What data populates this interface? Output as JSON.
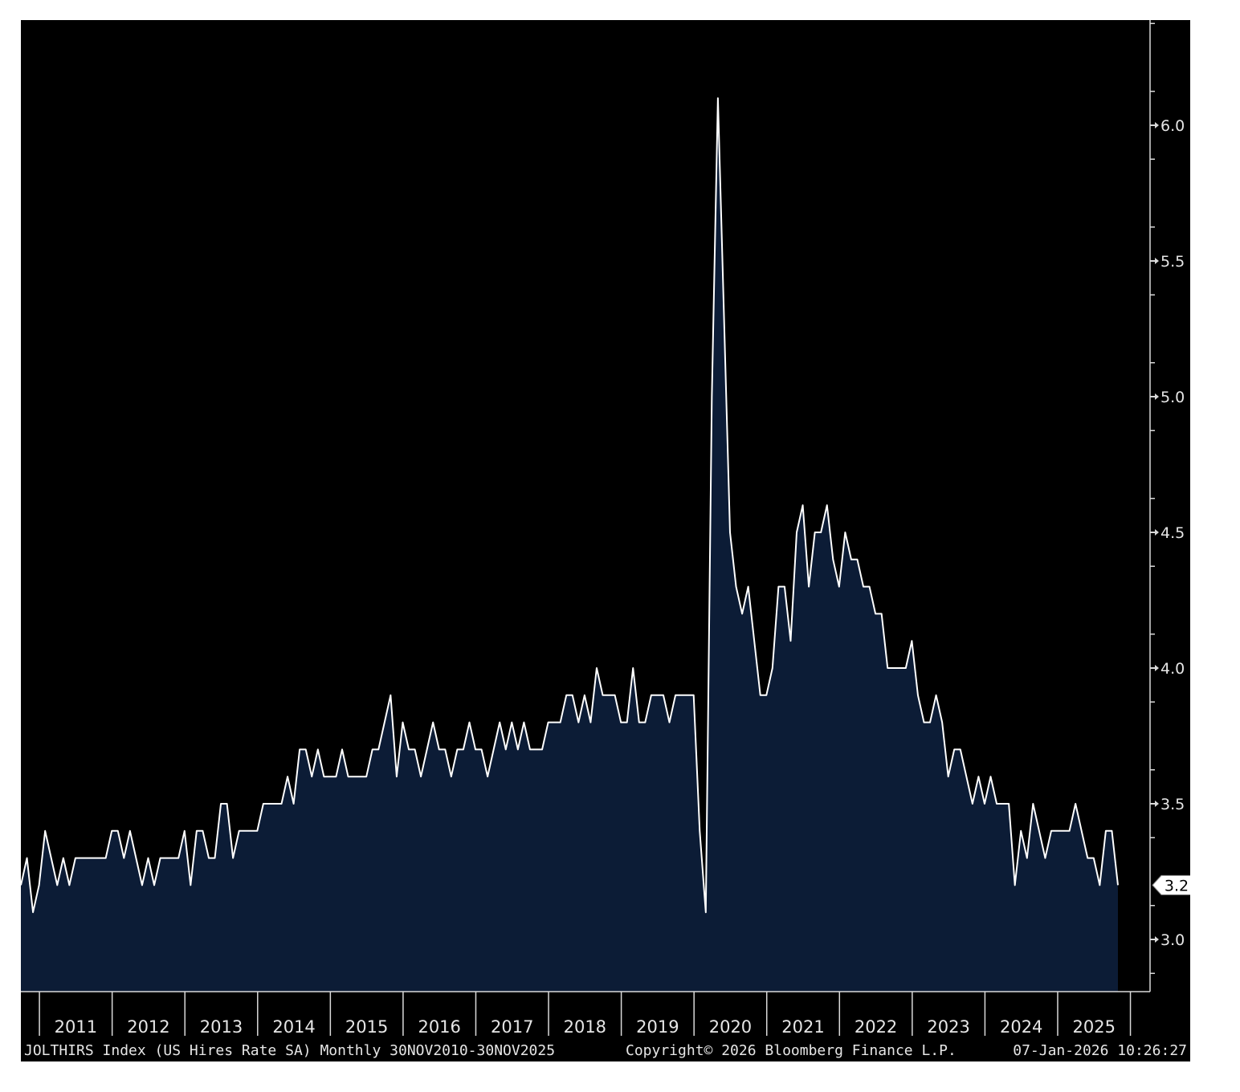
{
  "colors": {
    "background": "#000000",
    "area_fill": "#0c1c36",
    "line": "#ffffff",
    "axis": "#d9d9d9",
    "text": "#e6e6e6",
    "last_value_box": "#ffffff"
  },
  "footer": {
    "series_info": "JOLTHIRS Index (US Hires Rate SA) Monthly 30NOV2010-30NOV2025",
    "copyright": "Copyright© 2026 Bloomberg Finance L.P.",
    "timestamp": "07-Jan-2026 10:26:27"
  },
  "chart_data": {
    "type": "area",
    "start": "2010-11",
    "end": "2025-11",
    "frequency": "monthly",
    "ylim": [
      2.8,
      6.4
    ],
    "yticks": [
      3.0,
      3.5,
      4.0,
      4.5,
      5.0,
      5.5,
      6.0
    ],
    "ytick_labels": [
      "3.0",
      "3.5",
      "4.0",
      "4.5",
      "5.0",
      "5.5",
      "6.0"
    ],
    "y_axis_position": "right",
    "x_labels": [
      "2011",
      "2012",
      "2013",
      "2014",
      "2015",
      "2016",
      "2017",
      "2018",
      "2019",
      "2020",
      "2021",
      "2022",
      "2023",
      "2024",
      "2025"
    ],
    "last_value_label": "3.2",
    "grid": false,
    "values": [
      3.2,
      3.3,
      3.1,
      3.2,
      3.4,
      3.3,
      3.2,
      3.3,
      3.2,
      3.3,
      3.3,
      3.3,
      3.3,
      3.3,
      3.3,
      3.4,
      3.4,
      3.3,
      3.4,
      3.3,
      3.2,
      3.3,
      3.2,
      3.3,
      3.3,
      3.3,
      3.3,
      3.4,
      3.2,
      3.4,
      3.4,
      3.3,
      3.3,
      3.5,
      3.5,
      3.3,
      3.4,
      3.4,
      3.4,
      3.4,
      3.5,
      3.5,
      3.5,
      3.5,
      3.6,
      3.5,
      3.7,
      3.7,
      3.6,
      3.7,
      3.6,
      3.6,
      3.6,
      3.7,
      3.6,
      3.6,
      3.6,
      3.6,
      3.7,
      3.7,
      3.8,
      3.9,
      3.6,
      3.8,
      3.7,
      3.7,
      3.6,
      3.7,
      3.8,
      3.7,
      3.7,
      3.6,
      3.7,
      3.7,
      3.8,
      3.7,
      3.7,
      3.6,
      3.7,
      3.8,
      3.7,
      3.8,
      3.7,
      3.8,
      3.7,
      3.7,
      3.7,
      3.8,
      3.8,
      3.8,
      3.9,
      3.9,
      3.8,
      3.9,
      3.8,
      4.0,
      3.9,
      3.9,
      3.9,
      3.8,
      3.8,
      4.0,
      3.8,
      3.8,
      3.9,
      3.9,
      3.9,
      3.8,
      3.9,
      3.9,
      3.9,
      3.9,
      3.4,
      3.1,
      5.0,
      6.1,
      5.3,
      4.5,
      4.3,
      4.2,
      4.3,
      4.1,
      3.9,
      3.9,
      4.0,
      4.3,
      4.3,
      4.1,
      4.5,
      4.6,
      4.3,
      4.5,
      4.5,
      4.6,
      4.4,
      4.3,
      4.5,
      4.4,
      4.4,
      4.3,
      4.3,
      4.2,
      4.2,
      4.0,
      4.0,
      4.0,
      4.0,
      4.1,
      3.9,
      3.8,
      3.8,
      3.9,
      3.8,
      3.6,
      3.7,
      3.7,
      3.6,
      3.5,
      3.6,
      3.5,
      3.6,
      3.5,
      3.5,
      3.5,
      3.2,
      3.4,
      3.3,
      3.5,
      3.4,
      3.3,
      3.4,
      3.4,
      3.4,
      3.4,
      3.5,
      3.4,
      3.3,
      3.3,
      3.2,
      3.4,
      3.4,
      3.2
    ]
  }
}
